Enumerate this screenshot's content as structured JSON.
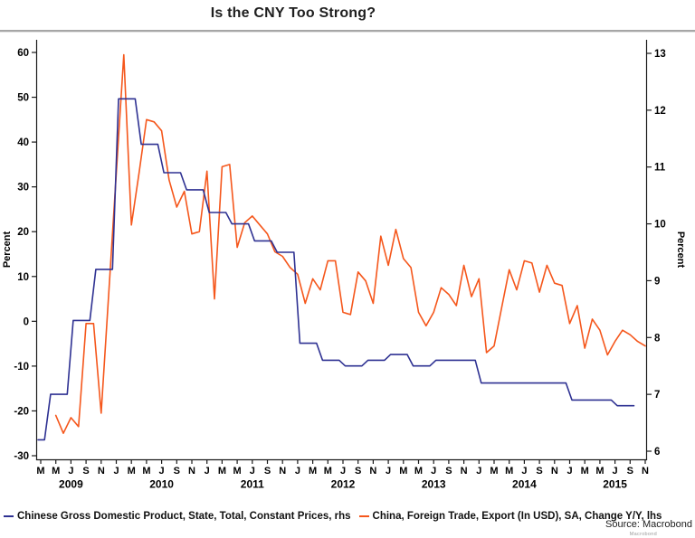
{
  "title": "Is the CNY Too Strong?",
  "source": "Source: Macrobond",
  "watermark": "Macrobond",
  "legend": [
    {
      "label": "Chinese Gross Domestic Product, State, Total, Constant Prices, rhs",
      "color": "#2e3192"
    },
    {
      "label": "China, Foreign Trade, Export (In USD), SA, Change Y/Y, lhs",
      "color": "#f5571c"
    }
  ],
  "chart_data": {
    "type": "line",
    "left_axis": {
      "label": "Percent",
      "ticks": [
        60,
        50,
        40,
        30,
        20,
        10,
        0,
        -10,
        -20,
        -30
      ],
      "ylim": [
        -30,
        60
      ]
    },
    "right_axis": {
      "label": "Percent",
      "ticks": [
        13,
        12,
        11,
        10,
        9,
        8,
        7,
        6
      ],
      "ylim": [
        6,
        13
      ]
    },
    "x_axis": {
      "start": "2009-01",
      "end": "2015-12",
      "grid": false,
      "month_tick_labels": [
        "M",
        "M",
        "J",
        "S",
        "N",
        "J",
        "M",
        "M",
        "J",
        "S",
        "N",
        "J",
        "M",
        "M",
        "J",
        "S",
        "N",
        "J",
        "M",
        "M",
        "J",
        "S",
        "N",
        "J",
        "M",
        "M",
        "J",
        "S",
        "N",
        "J",
        "M",
        "M",
        "J",
        "S",
        "N",
        "J",
        "M",
        "M",
        "J",
        "S",
        "N"
      ],
      "first_tick_month_index": 2,
      "tick_step_months": 2,
      "year_labels": [
        "2009",
        "2010",
        "2011",
        "2012",
        "2013",
        "2014",
        "2015"
      ]
    },
    "legend_position": "bottom",
    "series": [
      {
        "name": "Chinese Gross Domestic Product, State, Total, Constant Prices, rhs",
        "axis": "right",
        "color": "#2e3192",
        "frequency": "quarterly",
        "style": "step",
        "start": "2009-Q1",
        "values": [
          6.2,
          7.0,
          8.3,
          9.2,
          12.2,
          11.4,
          10.9,
          10.6,
          10.2,
          10.0,
          9.7,
          9.5,
          7.9,
          7.6,
          7.5,
          7.6,
          7.7,
          7.5,
          7.6,
          7.6,
          7.2,
          7.2,
          7.2,
          7.2,
          6.9,
          6.9,
          6.8
        ]
      },
      {
        "name": "China, Foreign Trade, Export (In USD), SA, Change Y/Y, lhs",
        "axis": "left",
        "color": "#f5571c",
        "frequency": "monthly",
        "style": "line",
        "start": "2009-05",
        "values": [
          -21,
          -25,
          -21.5,
          -23.5,
          -0.5,
          -0.5,
          -20.5,
          6,
          33,
          59.5,
          21.5,
          33,
          45,
          44.5,
          42.5,
          31.5,
          25.5,
          29,
          19.5,
          20,
          33.5,
          5,
          34.5,
          35,
          16.5,
          22,
          23.5,
          21.5,
          19.5,
          15.5,
          14.5,
          12,
          10.5,
          4,
          9.5,
          7,
          13.5,
          13.5,
          2,
          1.5,
          11,
          9,
          4,
          19,
          12.5,
          20.5,
          14,
          12,
          2,
          -1,
          2,
          7.5,
          6,
          3.5,
          12.5,
          5.5,
          9.5,
          -7,
          -5.5,
          3,
          11.5,
          7,
          13.5,
          13,
          6.5,
          12.5,
          8.5,
          8,
          -0.5,
          3.5,
          -6,
          0.5,
          -2,
          -7.5,
          -4.5,
          -2,
          -3,
          -4.5,
          -5.5
        ]
      }
    ]
  }
}
